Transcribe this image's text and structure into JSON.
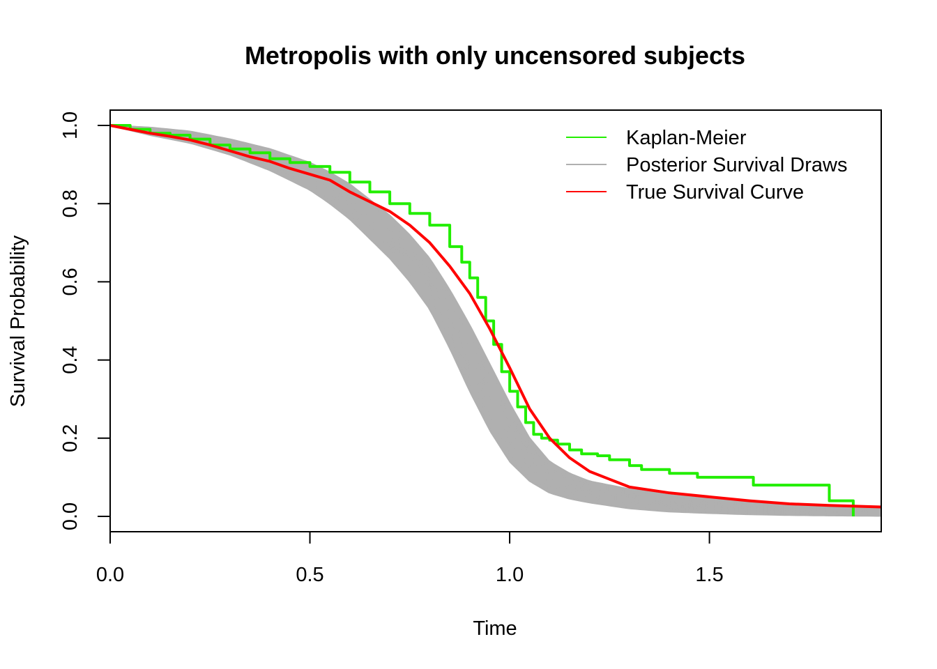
{
  "chart_data": {
    "type": "line",
    "title": "Metropolis with only uncensored subjects",
    "xlabel": "Time",
    "ylabel": "Survival Probability",
    "xlim": [
      0,
      1.93
    ],
    "ylim": [
      0,
      1
    ],
    "x_ticks": [
      "0.0",
      "0.5",
      "1.0",
      "1.5"
    ],
    "y_ticks": [
      "0.0",
      "0.2",
      "0.4",
      "0.6",
      "0.8",
      "1.0"
    ],
    "grid": false,
    "legend_position": "top-right",
    "legend": [
      {
        "label": "Kaplan-Meier",
        "color": "#22ee00"
      },
      {
        "label": "Posterior Survival Draws",
        "color": "#b0b0b0"
      },
      {
        "label": "True Survival Curve",
        "color": "#ff0000"
      }
    ],
    "series": [
      {
        "name": "Kaplan-Meier",
        "color": "#22ee00",
        "style": "step",
        "x": [
          0,
          0.05,
          0.1,
          0.15,
          0.2,
          0.25,
          0.3,
          0.35,
          0.4,
          0.45,
          0.5,
          0.55,
          0.6,
          0.65,
          0.7,
          0.75,
          0.8,
          0.85,
          0.88,
          0.9,
          0.92,
          0.94,
          0.96,
          0.98,
          1.0,
          1.02,
          1.04,
          1.06,
          1.08,
          1.1,
          1.12,
          1.15,
          1.18,
          1.22,
          1.25,
          1.3,
          1.33,
          1.4,
          1.47,
          1.61,
          1.8,
          1.86
        ],
        "y": [
          1.0,
          0.99,
          0.98,
          0.975,
          0.965,
          0.95,
          0.94,
          0.93,
          0.915,
          0.905,
          0.895,
          0.88,
          0.855,
          0.83,
          0.8,
          0.775,
          0.745,
          0.69,
          0.65,
          0.61,
          0.56,
          0.5,
          0.44,
          0.37,
          0.32,
          0.28,
          0.24,
          0.21,
          0.2,
          0.195,
          0.185,
          0.17,
          0.16,
          0.155,
          0.145,
          0.13,
          0.12,
          0.11,
          0.1,
          0.08,
          0.04,
          0.0
        ]
      },
      {
        "name": "True Survival Curve",
        "color": "#ff0000",
        "style": "line",
        "x": [
          0,
          0.05,
          0.1,
          0.15,
          0.2,
          0.25,
          0.3,
          0.35,
          0.4,
          0.45,
          0.5,
          0.55,
          0.6,
          0.65,
          0.7,
          0.75,
          0.8,
          0.85,
          0.9,
          0.95,
          1.0,
          1.05,
          1.1,
          1.15,
          1.2,
          1.25,
          1.3,
          1.4,
          1.5,
          1.6,
          1.7,
          1.8,
          1.93
        ],
        "y": [
          1.0,
          0.99,
          0.98,
          0.972,
          0.963,
          0.95,
          0.935,
          0.92,
          0.908,
          0.89,
          0.875,
          0.86,
          0.83,
          0.805,
          0.78,
          0.745,
          0.7,
          0.64,
          0.57,
          0.48,
          0.38,
          0.275,
          0.2,
          0.15,
          0.115,
          0.095,
          0.075,
          0.06,
          0.05,
          0.04,
          0.032,
          0.028,
          0.024
        ]
      },
      {
        "name": "Posterior Survival Draws",
        "color": "#b0b0b0",
        "style": "band",
        "x": [
          0,
          0.1,
          0.2,
          0.3,
          0.4,
          0.5,
          0.55,
          0.6,
          0.65,
          0.7,
          0.75,
          0.8,
          0.85,
          0.9,
          0.95,
          1.0,
          1.05,
          1.1,
          1.15,
          1.2,
          1.3,
          1.4,
          1.5,
          1.6,
          1.7,
          1.8,
          1.93
        ],
        "lower": [
          1.0,
          0.975,
          0.955,
          0.925,
          0.885,
          0.835,
          0.8,
          0.76,
          0.71,
          0.66,
          0.6,
          0.53,
          0.43,
          0.32,
          0.22,
          0.14,
          0.09,
          0.06,
          0.045,
          0.035,
          0.02,
          0.012,
          0.008,
          0.005,
          0.003,
          0.002,
          0.001
        ],
        "upper": [
          1.0,
          0.995,
          0.985,
          0.965,
          0.94,
          0.905,
          0.88,
          0.85,
          0.81,
          0.77,
          0.72,
          0.66,
          0.58,
          0.49,
          0.39,
          0.29,
          0.2,
          0.14,
          0.11,
          0.09,
          0.07,
          0.055,
          0.045,
          0.038,
          0.032,
          0.028,
          0.025
        ],
        "n_draws": 60
      }
    ]
  }
}
